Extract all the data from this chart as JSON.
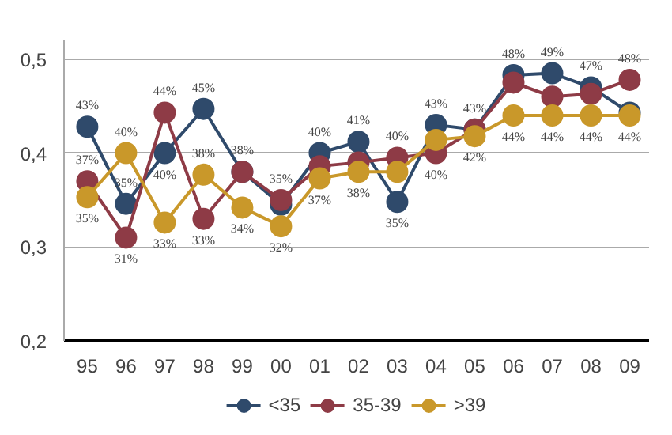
{
  "chart_data": {
    "type": "line",
    "categories": [
      "95",
      "96",
      "97",
      "98",
      "99",
      "00",
      "01",
      "02",
      "03",
      "04",
      "05",
      "06",
      "07",
      "08",
      "09"
    ],
    "ylim": [
      0.2,
      0.52
    ],
    "yticks": [
      {
        "value": 0.2,
        "label": "0,2"
      },
      {
        "value": 0.3,
        "label": "0,3"
      },
      {
        "value": 0.4,
        "label": "0,4"
      },
      {
        "value": 0.5,
        "label": "0,5"
      }
    ],
    "grid": "y",
    "legend": "bottom",
    "marker": "circle",
    "line_style": "solid",
    "series": [
      {
        "name": "<35",
        "color": "#2f4a6b",
        "values": [
          0.428,
          0.346,
          0.4,
          0.447,
          0.38,
          0.345,
          0.4,
          0.412,
          0.348,
          0.43,
          0.425,
          0.483,
          0.485,
          0.47,
          0.443
        ],
        "value_labels": [
          "43%",
          "35%",
          "40%",
          "45%",
          "38%",
          null,
          "40%",
          "41%",
          "35%",
          "43%",
          "43%",
          "48%",
          "49%",
          "47%",
          null
        ]
      },
      {
        "name": "35-39",
        "color": "#8e3b46",
        "values": [
          0.37,
          0.31,
          0.443,
          0.33,
          0.38,
          0.35,
          0.386,
          0.39,
          0.395,
          0.4,
          0.425,
          0.475,
          0.46,
          0.463,
          0.478
        ],
        "value_labels": [
          "37%",
          "31%",
          "44%",
          "33%",
          null,
          "35%",
          null,
          null,
          "40%",
          "40%",
          null,
          null,
          null,
          null,
          "48%"
        ]
      },
      {
        "name": ">39",
        "color": "#c9982a",
        "values": [
          0.353,
          0.4,
          0.326,
          0.377,
          0.342,
          0.322,
          0.373,
          0.38,
          0.38,
          0.414,
          0.418,
          0.44,
          0.44,
          0.44,
          0.44
        ],
        "value_labels": [
          "35%",
          "40%",
          "33%",
          "38%",
          "34%",
          "32%",
          "37%",
          "38%",
          null,
          null,
          "42%",
          "44%",
          "44%",
          "44%",
          "44%"
        ]
      }
    ]
  }
}
